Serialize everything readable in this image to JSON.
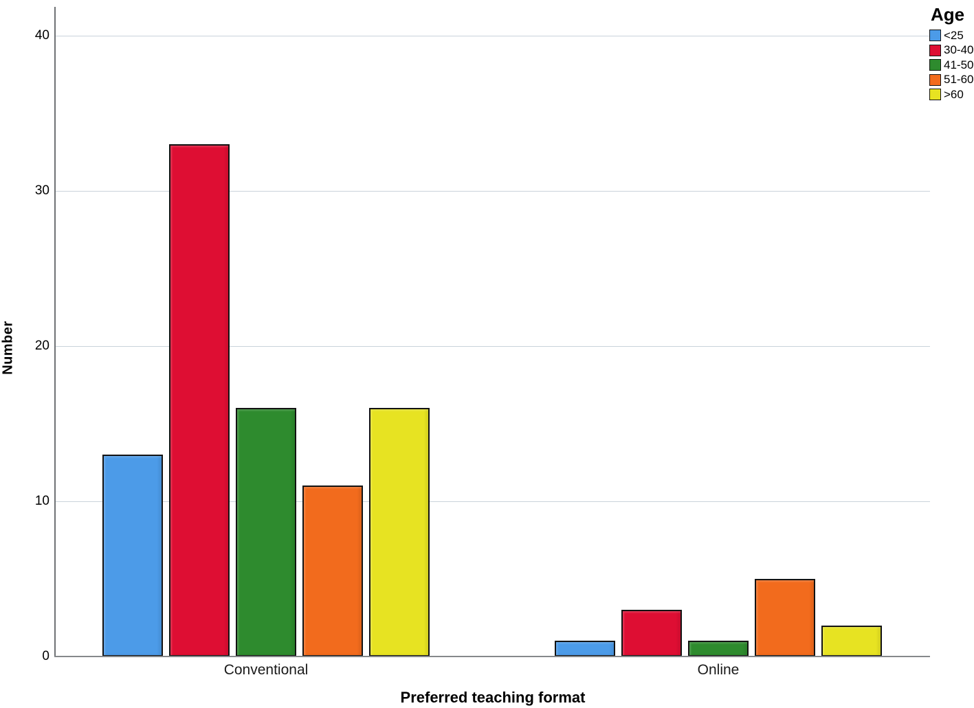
{
  "chart_data": {
    "type": "bar",
    "title": "",
    "xlabel": "Preferred teaching format",
    "ylabel": "Number",
    "legend_title": "Age",
    "legend_position": "top-right",
    "grid": true,
    "categories": [
      "Conventional",
      "Online"
    ],
    "series": [
      {
        "name": "<25",
        "color": "#4c9be8",
        "values": [
          13,
          1
        ]
      },
      {
        "name": "30-40",
        "color": "#de0e33",
        "values": [
          33,
          3
        ]
      },
      {
        "name": "41-50",
        "color": "#2e8b2e",
        "values": [
          16,
          1
        ]
      },
      {
        "name": "51-60",
        "color": "#f26b1d",
        "values": [
          11,
          5
        ]
      },
      {
        "name": ">60",
        "color": "#e7e322",
        "values": [
          16,
          2
        ]
      }
    ],
    "ylim": [
      0,
      40
    ],
    "yticks": [
      0,
      10,
      20,
      30,
      40
    ],
    "colors": {
      "gridline": "#c9d2da",
      "axis": "#6e7174",
      "bar_border": "#121212",
      "text": "#000000"
    }
  }
}
